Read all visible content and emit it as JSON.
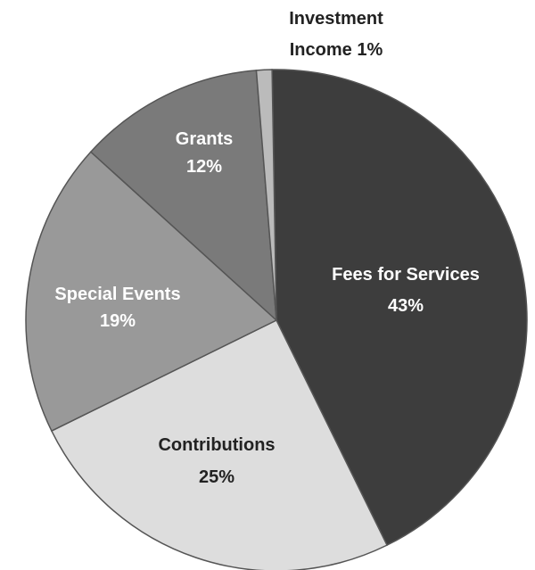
{
  "chart_data": {
    "type": "pie",
    "slices": [
      {
        "name": "Fees for Services",
        "pct_label": "43%",
        "value": 43,
        "color": "#3d3d3d",
        "label_color": "#ffffff"
      },
      {
        "name": "Contributions",
        "pct_label": "25%",
        "value": 25,
        "color": "#dddddd",
        "label_color": "#222222"
      },
      {
        "name": "Special Events",
        "pct_label": "19%",
        "value": 19,
        "color": "#999999",
        "label_color": "#ffffff"
      },
      {
        "name": "Grants",
        "pct_label": "12%",
        "value": 12,
        "color": "#7a7a7a",
        "label_color": "#ffffff"
      },
      {
        "name": "Investment Income 1%",
        "pct_label": "",
        "value": 1,
        "color": "#bbbbbb",
        "label_color": "#222222"
      }
    ],
    "outside_label": {
      "line1": "Investment",
      "line2": "Income 1%"
    }
  }
}
